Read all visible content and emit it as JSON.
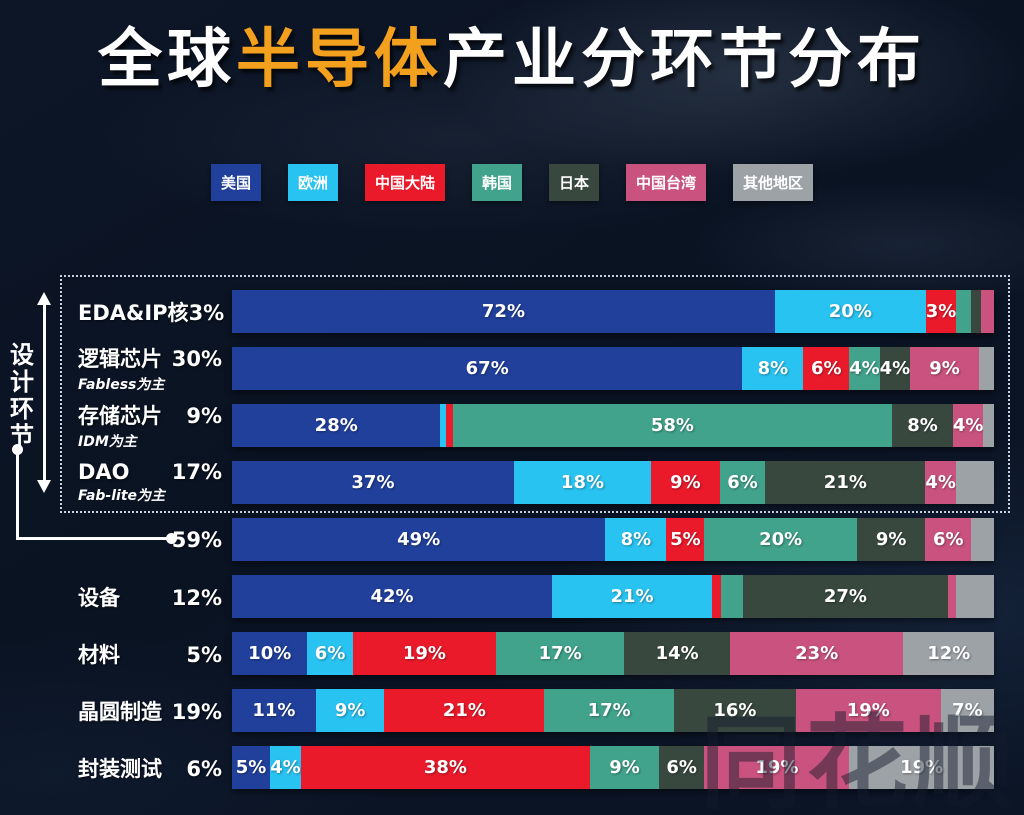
{
  "title": {
    "prefix": "全球",
    "highlight": "半导体",
    "suffix": "产业分环节分布"
  },
  "annotations": {
    "bracket_label": "设计环节",
    "design_total_note": "59%"
  },
  "watermark": "同花顺",
  "chart_data": {
    "type": "bar",
    "orientation": "horizontal",
    "stacked": true,
    "unit": "percent",
    "legend_position": "top",
    "title": "全球半导体产业分环节分布",
    "regions": [
      {
        "key": "usa",
        "label": "美国",
        "color": "#21409c"
      },
      {
        "key": "europe",
        "label": "欧洲",
        "color": "#29c3f2"
      },
      {
        "key": "china",
        "label": "中国大陆",
        "color": "#ea1a2b"
      },
      {
        "key": "korea",
        "label": "韩国",
        "color": "#41a38c"
      },
      {
        "key": "japan",
        "label": "日本",
        "color": "#38483f"
      },
      {
        "key": "taiwan",
        "label": "中国台湾",
        "color": "#c9537e"
      },
      {
        "key": "other",
        "label": "其他地区",
        "color": "#9da2a7"
      }
    ],
    "rows": [
      {
        "name": "EDA&IP核",
        "sub": "",
        "share": "3%",
        "segments": [
          {
            "key": "usa",
            "pct": 72,
            "label": "72%"
          },
          {
            "key": "europe",
            "pct": 20,
            "label": "20%"
          },
          {
            "key": "china",
            "pct": 3,
            "label": "3%"
          },
          {
            "key": "korea",
            "pct": 2,
            "label": ""
          },
          {
            "key": "japan",
            "pct": 1.3,
            "label": ""
          },
          {
            "key": "taiwan",
            "pct": 1.7,
            "label": ""
          }
        ]
      },
      {
        "name": "逻辑芯片",
        "sub": "Fabless为主",
        "share": "30%",
        "segments": [
          {
            "key": "usa",
            "pct": 67,
            "label": "67%"
          },
          {
            "key": "europe",
            "pct": 8,
            "label": "8%"
          },
          {
            "key": "china",
            "pct": 6,
            "label": "6%"
          },
          {
            "key": "korea",
            "pct": 4,
            "label": "4%"
          },
          {
            "key": "japan",
            "pct": 4,
            "label": "4%"
          },
          {
            "key": "taiwan",
            "pct": 9,
            "label": "9%"
          },
          {
            "key": "other",
            "pct": 2,
            "label": ""
          }
        ]
      },
      {
        "name": "存储芯片",
        "sub": "IDM为主",
        "share": "9%",
        "segments": [
          {
            "key": "usa",
            "pct": 27.5,
            "label": "28%"
          },
          {
            "key": "europe",
            "pct": 0.7,
            "label": ""
          },
          {
            "key": "china",
            "pct": 0.9,
            "label": ""
          },
          {
            "key": "korea",
            "pct": 58,
            "label": "58%"
          },
          {
            "key": "japan",
            "pct": 8,
            "label": "8%"
          },
          {
            "key": "taiwan",
            "pct": 4,
            "label": "4%"
          },
          {
            "key": "other",
            "pct": 1.4,
            "label": ""
          }
        ]
      },
      {
        "name": "DAO",
        "sub": "Fab-lite为主",
        "share": "17%",
        "segments": [
          {
            "key": "usa",
            "pct": 37,
            "label": "37%"
          },
          {
            "key": "europe",
            "pct": 18,
            "label": "18%"
          },
          {
            "key": "china",
            "pct": 9,
            "label": "9%"
          },
          {
            "key": "korea",
            "pct": 6,
            "label": "6%"
          },
          {
            "key": "japan",
            "pct": 21,
            "label": "21%"
          },
          {
            "key": "taiwan",
            "pct": 4,
            "label": "4%"
          },
          {
            "key": "other",
            "pct": 5,
            "label": ""
          }
        ]
      },
      {
        "name": "",
        "sub": "",
        "share": "59%",
        "segments": [
          {
            "key": "usa",
            "pct": 49,
            "label": "49%"
          },
          {
            "key": "europe",
            "pct": 8,
            "label": "8%"
          },
          {
            "key": "china",
            "pct": 5,
            "label": "5%"
          },
          {
            "key": "korea",
            "pct": 20,
            "label": "20%"
          },
          {
            "key": "japan",
            "pct": 9,
            "label": "9%"
          },
          {
            "key": "taiwan",
            "pct": 6,
            "label": "6%"
          },
          {
            "key": "other",
            "pct": 3,
            "label": ""
          }
        ]
      },
      {
        "name": "设备",
        "sub": "",
        "share": "12%",
        "segments": [
          {
            "key": "usa",
            "pct": 42,
            "label": "42%"
          },
          {
            "key": "europe",
            "pct": 21,
            "label": "21%"
          },
          {
            "key": "china",
            "pct": 1.2,
            "label": ""
          },
          {
            "key": "korea",
            "pct": 2.8,
            "label": ""
          },
          {
            "key": "japan",
            "pct": 27,
            "label": "27%"
          },
          {
            "key": "taiwan",
            "pct": 1,
            "label": ""
          },
          {
            "key": "other",
            "pct": 5,
            "label": ""
          }
        ]
      },
      {
        "name": "材料",
        "sub": "",
        "share": "5%",
        "segments": [
          {
            "key": "usa",
            "pct": 10,
            "label": "10%"
          },
          {
            "key": "europe",
            "pct": 6,
            "label": "6%"
          },
          {
            "key": "china",
            "pct": 19,
            "label": "19%"
          },
          {
            "key": "korea",
            "pct": 17,
            "label": "17%"
          },
          {
            "key": "japan",
            "pct": 14,
            "label": "14%"
          },
          {
            "key": "taiwan",
            "pct": 23,
            "label": "23%"
          },
          {
            "key": "other",
            "pct": 12,
            "label": "12%"
          }
        ]
      },
      {
        "name": "晶圆制造",
        "sub": "",
        "share": "19%",
        "segments": [
          {
            "key": "usa",
            "pct": 11,
            "label": "11%"
          },
          {
            "key": "europe",
            "pct": 9,
            "label": "9%"
          },
          {
            "key": "china",
            "pct": 21,
            "label": "21%"
          },
          {
            "key": "korea",
            "pct": 17,
            "label": "17%"
          },
          {
            "key": "japan",
            "pct": 16,
            "label": "16%"
          },
          {
            "key": "taiwan",
            "pct": 19,
            "label": "19%"
          },
          {
            "key": "other",
            "pct": 7,
            "label": "7%"
          }
        ]
      },
      {
        "name": "封装测试",
        "sub": "",
        "share": "6%",
        "segments": [
          {
            "key": "usa",
            "pct": 5,
            "label": "5%"
          },
          {
            "key": "europe",
            "pct": 4,
            "label": "4%"
          },
          {
            "key": "china",
            "pct": 38,
            "label": "38%"
          },
          {
            "key": "korea",
            "pct": 9,
            "label": "9%"
          },
          {
            "key": "japan",
            "pct": 6,
            "label": "6%"
          },
          {
            "key": "taiwan",
            "pct": 19,
            "label": "19%"
          },
          {
            "key": "other",
            "pct": 19,
            "label": "19%"
          }
        ]
      }
    ]
  }
}
